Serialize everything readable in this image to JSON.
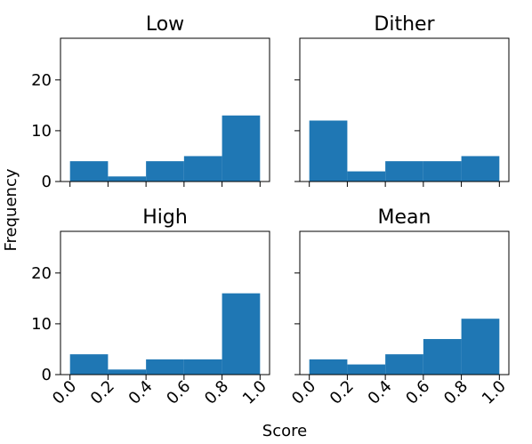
{
  "xlabel": "Score",
  "ylabel": "Frequency",
  "chart_data": [
    {
      "type": "histogram",
      "title": "Low",
      "bins": [
        0,
        0.2,
        0.4,
        0.6,
        0.8,
        1
      ],
      "values": [
        4,
        1,
        4,
        5,
        13
      ],
      "color": "#1f77b4",
      "xlim": [
        -0.05,
        1.05
      ],
      "ylim": [
        0,
        28.2
      ],
      "xticks": [
        0,
        0.2,
        0.4,
        0.6,
        0.8,
        1
      ],
      "yticks": [
        0,
        10,
        20
      ]
    },
    {
      "type": "histogram",
      "title": "Dither",
      "bins": [
        0,
        0.2,
        0.4,
        0.6,
        0.8,
        1
      ],
      "values": [
        12,
        2,
        4,
        4,
        5
      ],
      "color": "#1f77b4",
      "xlim": [
        -0.05,
        1.05
      ],
      "ylim": [
        0,
        28.2
      ],
      "xticks": [
        0,
        0.2,
        0.4,
        0.6,
        0.8,
        1
      ],
      "yticks": [
        0,
        10,
        20
      ]
    },
    {
      "type": "histogram",
      "title": "High",
      "bins": [
        0,
        0.2,
        0.4,
        0.6,
        0.8,
        1
      ],
      "values": [
        4,
        1,
        3,
        3,
        16
      ],
      "color": "#1f77b4",
      "xlim": [
        -0.05,
        1.05
      ],
      "ylim": [
        0,
        28.2
      ],
      "xticks": [
        {
          "value": 0,
          "label": "0.0"
        },
        0.2,
        0.4,
        0.6,
        0.8,
        {
          "value": 1,
          "label": "1.0"
        }
      ],
      "yticks": [
        0,
        10,
        20
      ]
    },
    {
      "type": "histogram",
      "title": "Mean",
      "bins": [
        0,
        0.2,
        0.4,
        0.6,
        0.8,
        1
      ],
      "values": [
        3,
        2,
        4,
        7,
        11
      ],
      "color": "#1f77b4",
      "xlim": [
        -0.05,
        1.05
      ],
      "ylim": [
        0,
        28.2
      ],
      "xticks": [
        {
          "value": 0,
          "label": "0.0"
        },
        0.2,
        0.4,
        0.6,
        0.8,
        {
          "value": 1,
          "label": "1.0"
        }
      ],
      "yticks": [
        0,
        10,
        20
      ]
    }
  ]
}
